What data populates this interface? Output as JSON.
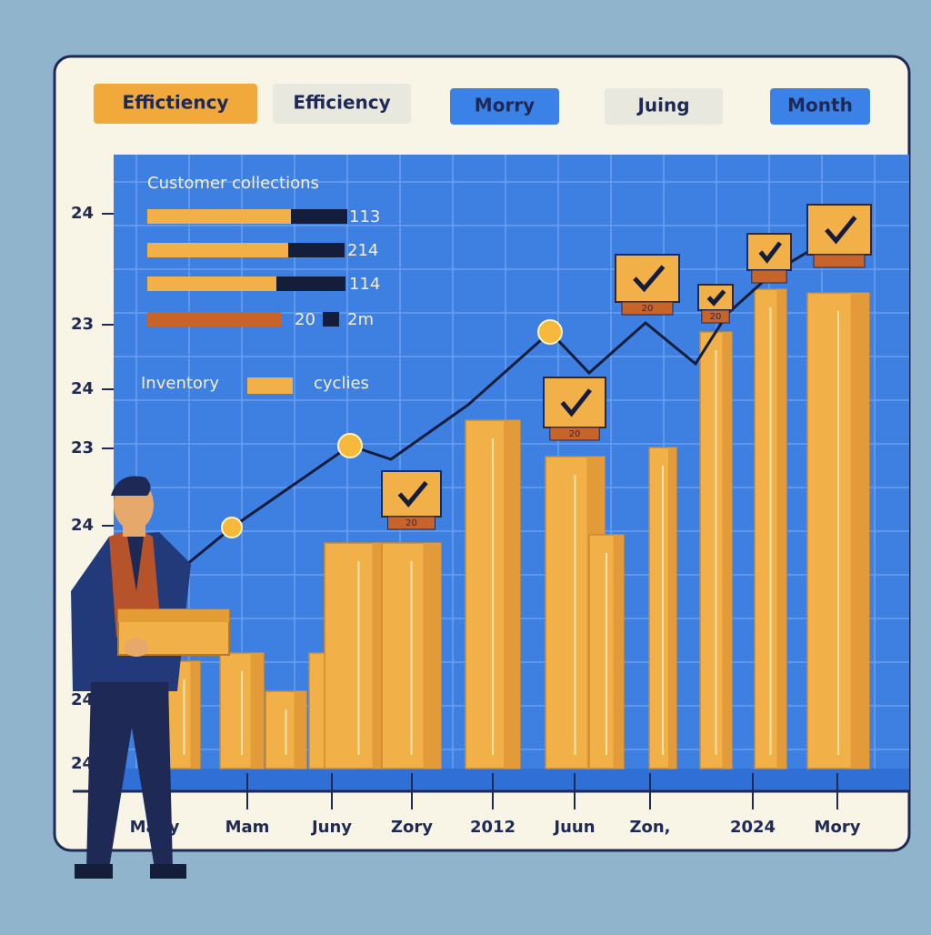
{
  "tabs": [
    "Effictiency",
    "Efficiency",
    "Morry",
    "Juing",
    "Month"
  ],
  "legend": {
    "title": "Customer collections",
    "rows": [
      "113",
      "214",
      "114",
      "2m"
    ],
    "extra": "20",
    "inventory": "Inventory",
    "cycles": "cyclies"
  },
  "y_labels": [
    "24",
    "23",
    "24",
    "23",
    "24",
    "24",
    "24"
  ],
  "x_labels": [
    "Mapy",
    "Mam",
    "Juny",
    "Zory",
    "2012",
    "Juun",
    "Zon,",
    "2024",
    "Mory"
  ],
  "tags": [
    "20",
    "20",
    "20",
    "20"
  ]
}
